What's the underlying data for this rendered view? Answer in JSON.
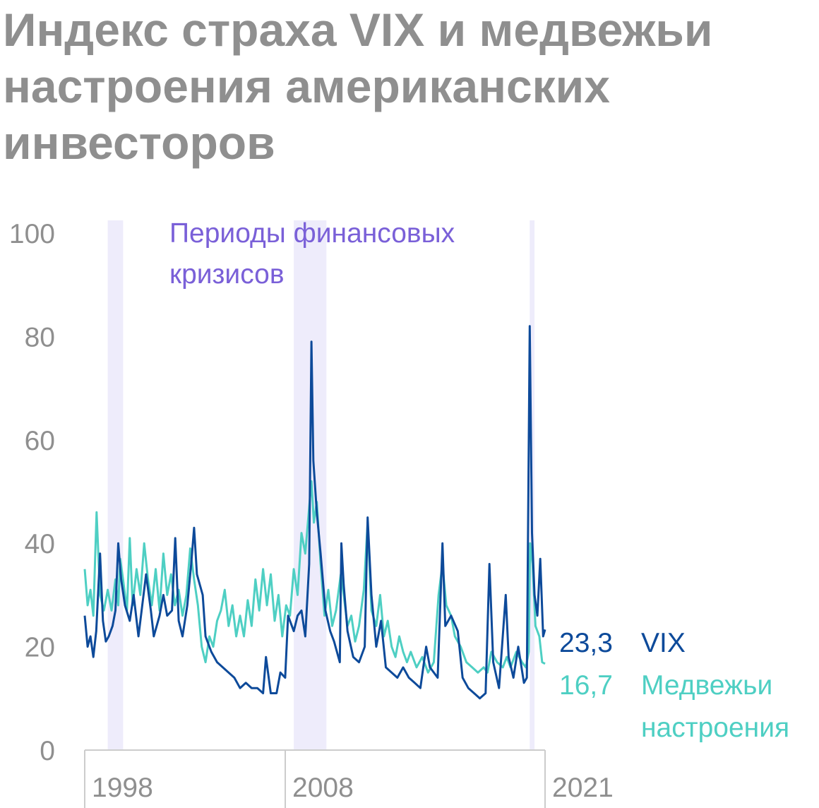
{
  "title": "Индекс страха VIX и медвежьи настроения американских инвесторов",
  "chart_data": {
    "type": "line",
    "ylim": [
      0,
      100
    ],
    "yticks": [
      "0",
      "20",
      "40",
      "60",
      "80",
      "100"
    ],
    "x_range": [
      1997,
      2021
    ],
    "xticks": [
      "1998",
      "2008",
      "2021"
    ],
    "colors": {
      "vix": "#0d4a9a",
      "bear": "#4ecfc3",
      "crisis": "#eeecfb",
      "label": "#7a60d8"
    },
    "crisis_label": [
      "Периоды финансовых",
      "кризисов"
    ],
    "crisis_periods": [
      [
        1998.2,
        1999.0
      ],
      [
        2007.9,
        2009.6
      ],
      [
        2020.2,
        2020.45
      ]
    ],
    "end_labels": {
      "vix": {
        "value": "23,3",
        "name": "VIX"
      },
      "bear": {
        "value": "16,7",
        "name_lines": [
          "Медвежьи",
          "настроения"
        ]
      }
    },
    "series": [
      {
        "name": "VIX",
        "key": "vix",
        "points": [
          [
            1997.0,
            26
          ],
          [
            1997.15,
            20
          ],
          [
            1997.3,
            22
          ],
          [
            1997.45,
            18
          ],
          [
            1997.6,
            23
          ],
          [
            1997.8,
            38
          ],
          [
            1997.95,
            25
          ],
          [
            1998.1,
            21
          ],
          [
            1998.25,
            22
          ],
          [
            1998.45,
            24
          ],
          [
            1998.6,
            27
          ],
          [
            1998.75,
            40
          ],
          [
            1998.9,
            33
          ],
          [
            1999.1,
            28
          ],
          [
            1999.35,
            25
          ],
          [
            1999.55,
            30
          ],
          [
            1999.8,
            22
          ],
          [
            2000.0,
            28
          ],
          [
            2000.2,
            34
          ],
          [
            2000.45,
            27
          ],
          [
            2000.6,
            22
          ],
          [
            2000.9,
            26
          ],
          [
            2001.1,
            30
          ],
          [
            2001.3,
            26
          ],
          [
            2001.55,
            27
          ],
          [
            2001.72,
            41
          ],
          [
            2001.9,
            25
          ],
          [
            2002.1,
            22
          ],
          [
            2002.35,
            28
          ],
          [
            2002.55,
            36
          ],
          [
            2002.7,
            43
          ],
          [
            2002.85,
            34
          ],
          [
            2003.0,
            32
          ],
          [
            2003.15,
            30
          ],
          [
            2003.3,
            22
          ],
          [
            2003.6,
            19
          ],
          [
            2003.9,
            17
          ],
          [
            2004.2,
            16
          ],
          [
            2004.5,
            15
          ],
          [
            2004.8,
            14
          ],
          [
            2005.1,
            12
          ],
          [
            2005.4,
            13
          ],
          [
            2005.7,
            12
          ],
          [
            2006.0,
            12
          ],
          [
            2006.3,
            11
          ],
          [
            2006.45,
            18
          ],
          [
            2006.7,
            11
          ],
          [
            2007.0,
            11
          ],
          [
            2007.2,
            15
          ],
          [
            2007.45,
            14
          ],
          [
            2007.6,
            26
          ],
          [
            2007.9,
            23
          ],
          [
            2008.1,
            26
          ],
          [
            2008.3,
            27
          ],
          [
            2008.5,
            22
          ],
          [
            2008.7,
            36
          ],
          [
            2008.82,
            79
          ],
          [
            2008.92,
            56
          ],
          [
            2009.1,
            46
          ],
          [
            2009.3,
            38
          ],
          [
            2009.55,
            27
          ],
          [
            2009.8,
            23
          ],
          [
            2010.0,
            21
          ],
          [
            2010.3,
            17
          ],
          [
            2010.38,
            40
          ],
          [
            2010.5,
            32
          ],
          [
            2010.7,
            23
          ],
          [
            2011.0,
            18
          ],
          [
            2011.3,
            17
          ],
          [
            2011.6,
            20
          ],
          [
            2011.75,
            45
          ],
          [
            2011.95,
            30
          ],
          [
            2012.2,
            20
          ],
          [
            2012.45,
            25
          ],
          [
            2012.7,
            16
          ],
          [
            2013.0,
            15
          ],
          [
            2013.3,
            14
          ],
          [
            2013.6,
            16
          ],
          [
            2013.9,
            14
          ],
          [
            2014.2,
            13
          ],
          [
            2014.5,
            12
          ],
          [
            2014.8,
            20
          ],
          [
            2015.0,
            16
          ],
          [
            2015.4,
            14
          ],
          [
            2015.65,
            40
          ],
          [
            2015.8,
            24
          ],
          [
            2016.1,
            26
          ],
          [
            2016.45,
            23
          ],
          [
            2016.7,
            14
          ],
          [
            2017.0,
            12
          ],
          [
            2017.3,
            11
          ],
          [
            2017.6,
            10
          ],
          [
            2017.9,
            11
          ],
          [
            2018.1,
            36
          ],
          [
            2018.3,
            17
          ],
          [
            2018.6,
            12
          ],
          [
            2018.95,
            30
          ],
          [
            2019.1,
            18
          ],
          [
            2019.35,
            14
          ],
          [
            2019.6,
            20
          ],
          [
            2019.9,
            13
          ],
          [
            2020.05,
            14
          ],
          [
            2020.2,
            82
          ],
          [
            2020.32,
            42
          ],
          [
            2020.45,
            30
          ],
          [
            2020.6,
            26
          ],
          [
            2020.75,
            37
          ],
          [
            2020.9,
            22
          ],
          [
            2021.0,
            23.3
          ]
        ]
      },
      {
        "name": "Медвежьи настроения",
        "key": "bear",
        "points": [
          [
            1997.0,
            35
          ],
          [
            1997.15,
            28
          ],
          [
            1997.3,
            31
          ],
          [
            1997.45,
            26
          ],
          [
            1997.62,
            46
          ],
          [
            1997.8,
            30
          ],
          [
            1998.0,
            27
          ],
          [
            1998.2,
            31
          ],
          [
            1998.4,
            27
          ],
          [
            1998.6,
            33
          ],
          [
            1998.75,
            28
          ],
          [
            1998.85,
            37
          ],
          [
            1999.0,
            33
          ],
          [
            1999.2,
            27
          ],
          [
            1999.35,
            41
          ],
          [
            1999.5,
            28
          ],
          [
            1999.7,
            35
          ],
          [
            1999.9,
            30
          ],
          [
            2000.1,
            40
          ],
          [
            2000.3,
            33
          ],
          [
            2000.5,
            28
          ],
          [
            2000.7,
            35
          ],
          [
            2000.9,
            27
          ],
          [
            2001.1,
            38
          ],
          [
            2001.3,
            30
          ],
          [
            2001.5,
            34
          ],
          [
            2001.7,
            28
          ],
          [
            2001.9,
            31
          ],
          [
            2002.1,
            26
          ],
          [
            2002.3,
            30
          ],
          [
            2002.5,
            39
          ],
          [
            2002.7,
            33
          ],
          [
            2002.9,
            28
          ],
          [
            2003.1,
            20
          ],
          [
            2003.3,
            17
          ],
          [
            2003.5,
            22
          ],
          [
            2003.7,
            20
          ],
          [
            2003.9,
            25
          ],
          [
            2004.1,
            27
          ],
          [
            2004.3,
            31
          ],
          [
            2004.5,
            24
          ],
          [
            2004.7,
            28
          ],
          [
            2004.9,
            22
          ],
          [
            2005.1,
            26
          ],
          [
            2005.3,
            22
          ],
          [
            2005.5,
            29
          ],
          [
            2005.7,
            24
          ],
          [
            2005.9,
            33
          ],
          [
            2006.1,
            27
          ],
          [
            2006.3,
            35
          ],
          [
            2006.5,
            28
          ],
          [
            2006.7,
            34
          ],
          [
            2006.9,
            25
          ],
          [
            2007.1,
            30
          ],
          [
            2007.3,
            22
          ],
          [
            2007.5,
            28
          ],
          [
            2007.7,
            26
          ],
          [
            2007.9,
            35
          ],
          [
            2008.1,
            30
          ],
          [
            2008.3,
            42
          ],
          [
            2008.5,
            38
          ],
          [
            2008.7,
            47
          ],
          [
            2008.82,
            52
          ],
          [
            2008.95,
            44
          ],
          [
            2009.1,
            48
          ],
          [
            2009.3,
            36
          ],
          [
            2009.5,
            26
          ],
          [
            2009.7,
            31
          ],
          [
            2009.9,
            24
          ],
          [
            2010.1,
            27
          ],
          [
            2010.35,
            34
          ],
          [
            2010.5,
            30
          ],
          [
            2010.7,
            24
          ],
          [
            2010.9,
            26
          ],
          [
            2011.1,
            21
          ],
          [
            2011.3,
            24
          ],
          [
            2011.55,
            31
          ],
          [
            2011.75,
            44
          ],
          [
            2011.95,
            27
          ],
          [
            2012.2,
            24
          ],
          [
            2012.4,
            30
          ],
          [
            2012.6,
            22
          ],
          [
            2012.8,
            25
          ],
          [
            2013.0,
            20
          ],
          [
            2013.2,
            18
          ],
          [
            2013.4,
            22
          ],
          [
            2013.6,
            19
          ],
          [
            2013.8,
            17
          ],
          [
            2014.0,
            19
          ],
          [
            2014.3,
            16
          ],
          [
            2014.6,
            18
          ],
          [
            2014.9,
            15
          ],
          [
            2015.2,
            17
          ],
          [
            2015.45,
            30
          ],
          [
            2015.65,
            36
          ],
          [
            2015.85,
            28
          ],
          [
            2016.1,
            26
          ],
          [
            2016.3,
            22
          ],
          [
            2016.6,
            20
          ],
          [
            2016.9,
            17
          ],
          [
            2017.2,
            16
          ],
          [
            2017.5,
            15
          ],
          [
            2017.8,
            16
          ],
          [
            2018.0,
            15
          ],
          [
            2018.2,
            19
          ],
          [
            2018.5,
            17
          ],
          [
            2018.8,
            16
          ],
          [
            2019.0,
            18
          ],
          [
            2019.2,
            16
          ],
          [
            2019.5,
            19
          ],
          [
            2019.8,
            17
          ],
          [
            2020.0,
            16
          ],
          [
            2020.15,
            19
          ],
          [
            2020.22,
            40
          ],
          [
            2020.35,
            36
          ],
          [
            2020.5,
            24
          ],
          [
            2020.7,
            22
          ],
          [
            2020.85,
            17
          ],
          [
            2021.0,
            16.7
          ]
        ]
      }
    ]
  }
}
